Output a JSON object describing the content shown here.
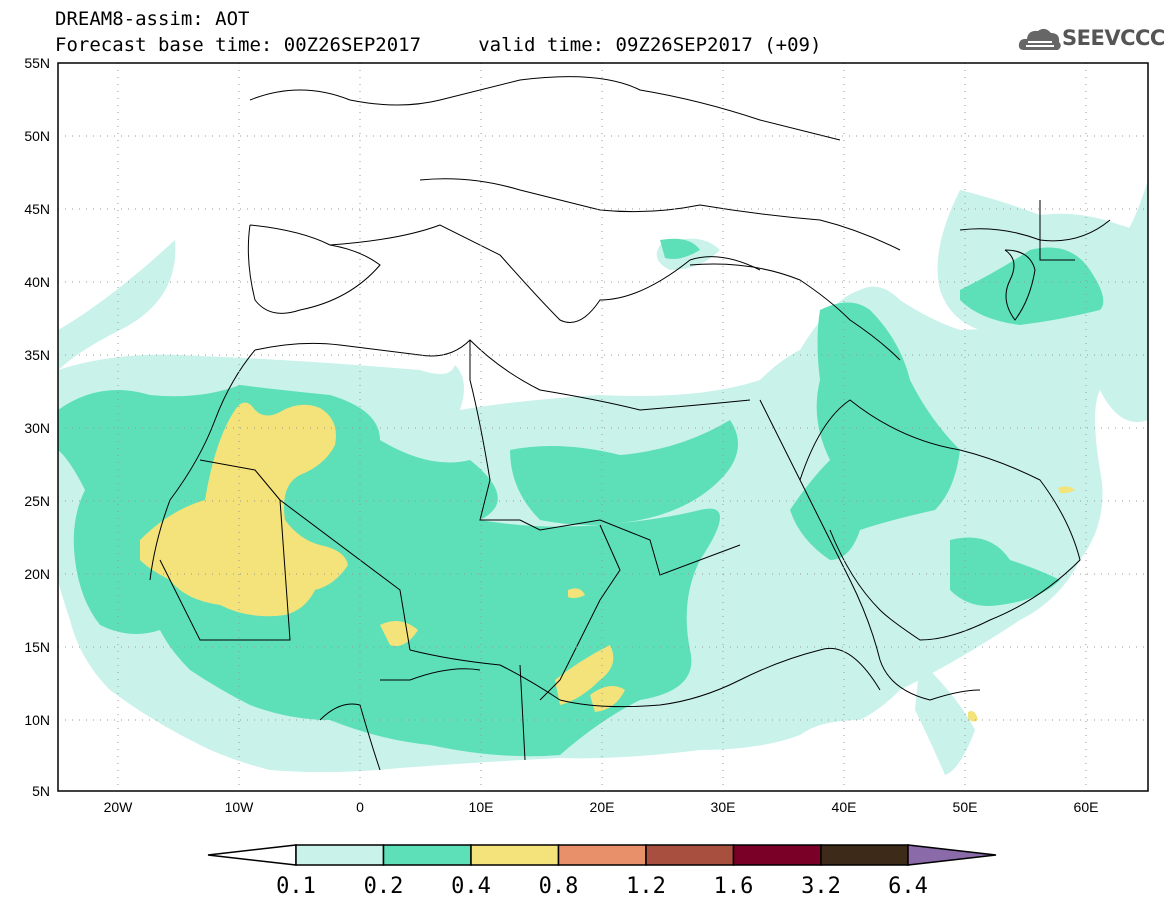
{
  "header": {
    "line1": "DREAM8-assim: AOT",
    "line2": "Forecast base time: 00Z26SEP2017     valid time: 09Z26SEP2017 (+09)"
  },
  "logo": {
    "text": "SEEVCCC",
    "icon": "cloud-icon"
  },
  "map": {
    "projection": "lat-lon",
    "lon_range": [
      -25,
      65
    ],
    "lat_range": [
      5,
      55
    ],
    "grid": true,
    "lat_labels": [
      "55N",
      "50N",
      "45N",
      "40N",
      "35N",
      "30N",
      "25N",
      "20N",
      "15N",
      "10N",
      "5N"
    ],
    "lon_labels": [
      "20W",
      "10W",
      "0",
      "10E",
      "20E",
      "30E",
      "40E",
      "50E",
      "60E"
    ]
  },
  "colorbar": {
    "levels": [
      "0.1",
      "0.2",
      "0.4",
      "0.8",
      "1.2",
      "1.6",
      "3.2",
      "6.4"
    ],
    "colors": [
      "#ffffff",
      "#c8f2ea",
      "#5de0b8",
      "#f4e27a",
      "#e8906a",
      "#a84f3f",
      "#7a0028",
      "#3d2a18",
      "#8b6aaa"
    ]
  }
}
